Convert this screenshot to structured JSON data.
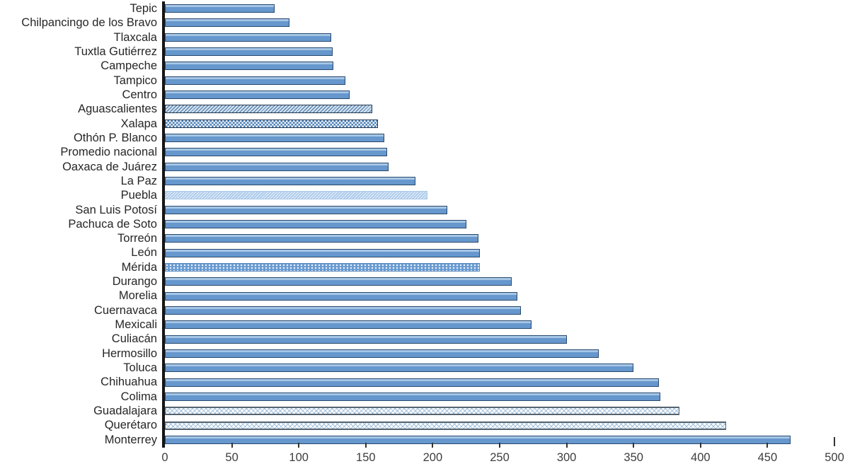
{
  "chart_data": {
    "type": "bar",
    "orientation": "horizontal",
    "title": "",
    "xlabel": "",
    "ylabel": "",
    "xlim": [
      0,
      500
    ],
    "x_ticks": [
      0,
      50,
      100,
      150,
      200,
      250,
      300,
      350,
      400,
      450,
      500
    ],
    "grid": false,
    "legend": "none",
    "bar_color": "#6697CD",
    "bar_border_color": "#27496D",
    "axis_color": "#161616",
    "categories": [
      "Tepic",
      "Chilpancingo de los Bravo",
      "Tlaxcala",
      "Tuxtla Gutiérrez",
      "Campeche",
      "Tampico",
      "Centro",
      "Aguascalientes",
      "Xalapa",
      "Othón P. Blanco",
      "Promedio nacional",
      "Oaxaca de Juárez",
      "La Paz",
      "Puebla",
      "San Luis Potosí",
      "Pachuca de Soto",
      "Torreón",
      "León",
      "Mérida",
      "Durango",
      "Morelia",
      "Cuernavaca",
      "Mexicali",
      "Culiacán",
      "Hermosillo",
      "Toluca",
      "Chihuahua",
      "Colima",
      "Guadalajara",
      "Querétaro",
      "Monterrey"
    ],
    "values": [
      82,
      93,
      124,
      125,
      126,
      135,
      138,
      155,
      159,
      164,
      166,
      167,
      187,
      196,
      211,
      225,
      234,
      235,
      235,
      259,
      263,
      266,
      274,
      300,
      324,
      350,
      369,
      370,
      384,
      419,
      467
    ],
    "bar_styles": [
      "solid",
      "solid",
      "solid",
      "solid",
      "solid",
      "solid",
      "solid",
      "diagonal-hatch",
      "checker",
      "solid",
      "solid",
      "solid",
      "solid",
      "fine-hatch",
      "solid",
      "solid",
      "solid",
      "solid",
      "white-dots",
      "solid",
      "solid",
      "solid",
      "solid",
      "solid",
      "solid",
      "solid",
      "solid",
      "solid",
      "diamond-chain",
      "diamond-chain",
      "solid"
    ]
  }
}
